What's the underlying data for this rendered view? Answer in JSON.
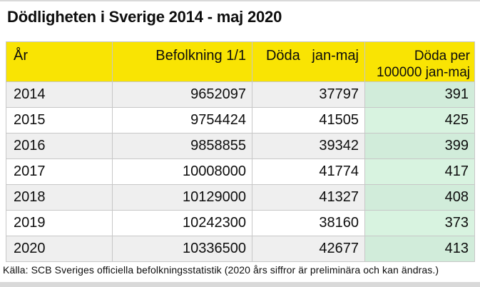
{
  "title": "Dödligheten i Sverige 2014 - maj 2020",
  "chart_data": {
    "type": "table",
    "title": "Dödligheten i Sverige 2014 - maj 2020",
    "columns": [
      "År",
      "Befolkning 1/1",
      "Döda   jan-maj",
      "Döda per\n100000 jan-maj"
    ],
    "rows": [
      [
        2014,
        9652097,
        37797,
        391
      ],
      [
        2015,
        9754424,
        41505,
        425
      ],
      [
        2016,
        9858855,
        39342,
        399
      ],
      [
        2017,
        10008000,
        41774,
        417
      ],
      [
        2018,
        10129000,
        41327,
        408
      ],
      [
        2019,
        10242300,
        38160,
        373
      ],
      [
        2020,
        10336500,
        42677,
        413
      ]
    ],
    "years": [
      2014,
      2015,
      2016,
      2017,
      2018,
      2019,
      2020
    ],
    "population_jan1": [
      9652097,
      9754424,
      9858855,
      10008000,
      10129000,
      10242300,
      10336500
    ],
    "deaths_jan_maj": [
      37797,
      41505,
      39342,
      41774,
      41327,
      38160,
      42677
    ],
    "deaths_per_100000_jan_maj": [
      391,
      425,
      399,
      417,
      408,
      373,
      413
    ]
  },
  "footer": {
    "source": "Källa: SCB Sveriges officiella befolkningsstatistik (2020 års siffror är preliminära och kan ändras.)"
  },
  "colors": {
    "header_bg": "#f9e403",
    "accent_col_bg": "#d8f3e0",
    "accent_col_bg_alt": "#d1ecda",
    "stripe_bg": "#efefef",
    "border_color": "#c7c7c7",
    "band_color": "#d9d9d9"
  }
}
